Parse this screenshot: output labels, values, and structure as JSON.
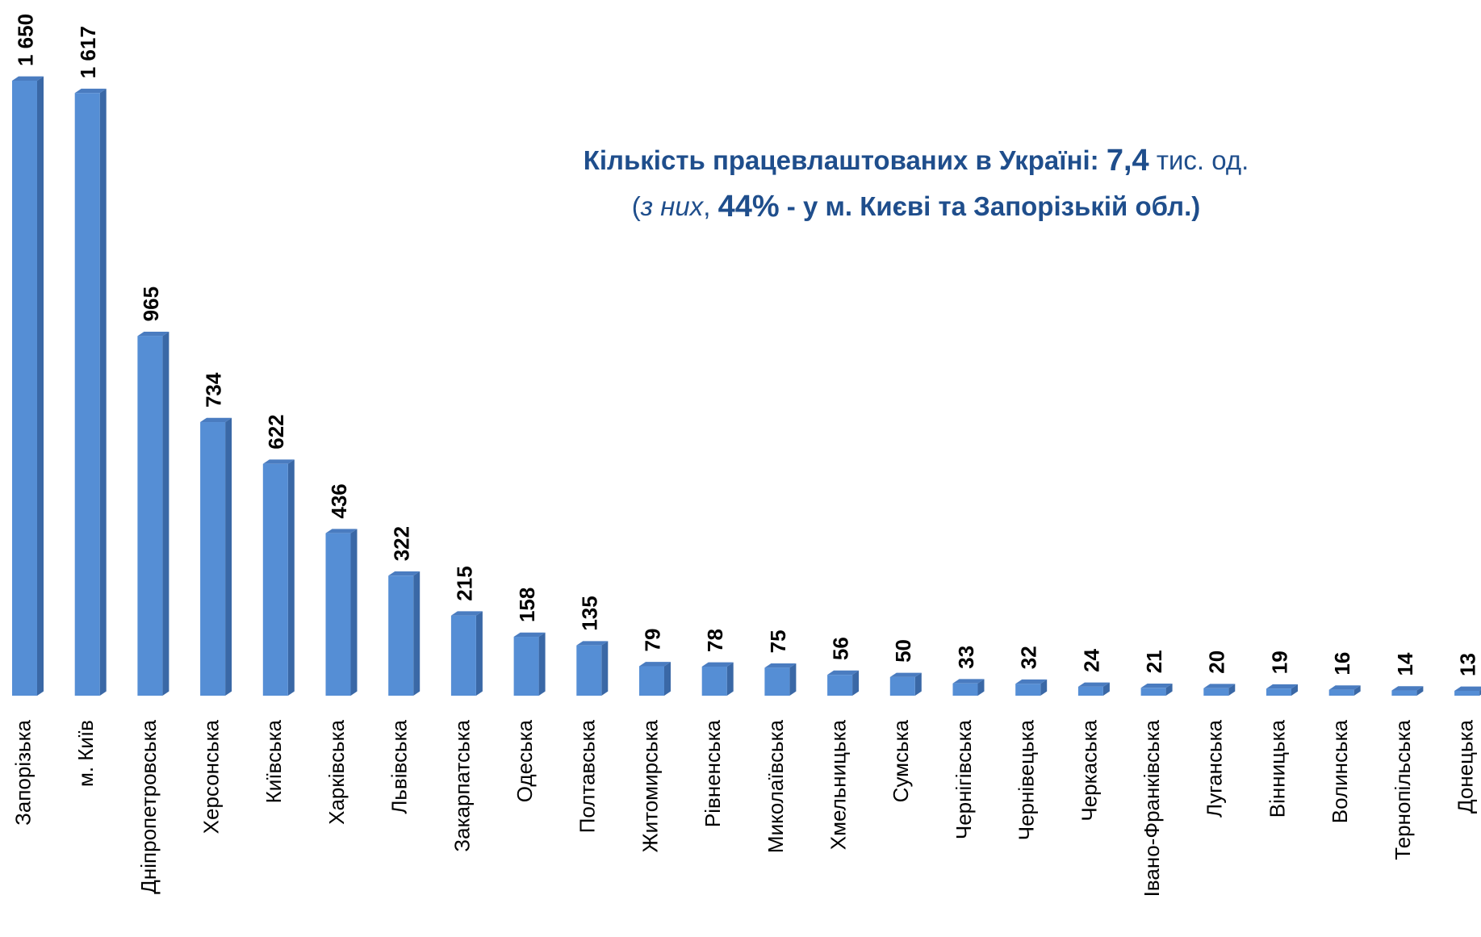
{
  "chart_data": {
    "type": "bar",
    "annotation_lines": [
      [
        "Кількість працевлаштованих в Україні: ",
        "7,4",
        " тис. од."
      ],
      [
        "(",
        "з них",
        ", ",
        "44%",
        " - у м. Києві та Запорізькій обл.)"
      ]
    ],
    "categories": [
      "Запорізька",
      "м. Київ",
      "Дніпропетровська",
      "Херсонська",
      "Київська",
      "Харківська",
      "Львівська",
      "Закарпатська",
      "Одеська",
      "Полтавська",
      "Житомирська",
      "Рівненська",
      "Миколаївська",
      "Хмельницька",
      "Сумська",
      "Чернігівська",
      "Чернівецька",
      "Черкаська",
      "Івано-Франківська",
      "Луганська",
      "Вінницька",
      "Волинська",
      "Тернопільська",
      "Донецька"
    ],
    "values": [
      1650,
      1617,
      965,
      734,
      622,
      436,
      322,
      215,
      158,
      135,
      79,
      78,
      75,
      56,
      50,
      33,
      32,
      24,
      21,
      20,
      19,
      16,
      14,
      13
    ],
    "value_labels": [
      "1 650",
      "1 617",
      "965",
      "734",
      "622",
      "436",
      "322",
      "215",
      "158",
      "135",
      "79",
      "78",
      "75",
      "56",
      "50",
      "33",
      "32",
      "24",
      "21",
      "20",
      "19",
      "16",
      "14",
      "13"
    ],
    "color": "#558ed5"
  }
}
